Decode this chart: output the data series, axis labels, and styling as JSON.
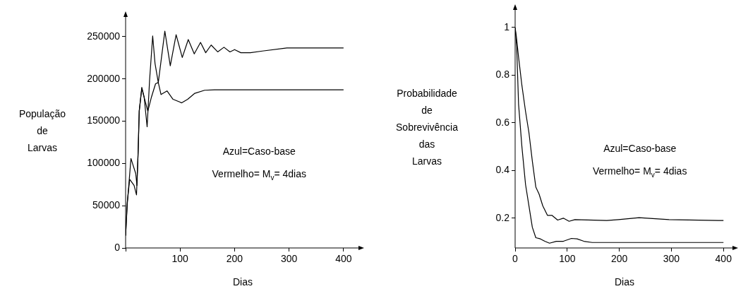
{
  "chart_data": [
    {
      "type": "line",
      "xlabel": "Dias",
      "ylabel": "População\nde\nLarvas",
      "xlim": [
        0,
        430
      ],
      "ylim": [
        0,
        275000
      ],
      "xticks": [
        {
          "value": 0,
          "label": null
        },
        100,
        200,
        300,
        400
      ],
      "yticks": [
        0,
        50000,
        100000,
        150000,
        200000,
        250000
      ],
      "annotations": [
        "Azul=Caso-base",
        "Vermelho= M$_{v}$= 4dias"
      ],
      "series": [
        {
          "color": "#000000",
          "x": [
            0,
            3,
            9.8,
            18.6,
            20.8,
            23,
            25,
            29.7,
            34,
            39.5,
            44,
            49.7,
            54,
            60,
            72,
            82,
            92.7,
            104,
            115,
            126,
            137.5,
            147,
            157,
            169,
            180.5,
            191.5,
            200,
            211.5,
            229,
            251,
            296,
            400
          ],
          "values": [
            14700,
            51500,
            105800,
            88000,
            74000,
            113700,
            161800,
            190000,
            178700,
            143400,
            198500,
            250800,
            218300,
            195700,
            256500,
            215500,
            252300,
            225400,
            246600,
            229600,
            243200,
            231000,
            240100,
            232000,
            237500,
            232000,
            234700,
            231000,
            231000,
            233000,
            236700,
            236700
          ]
        },
        {
          "color": "#000000",
          "x": [
            0,
            3,
            7.5,
            15.5,
            20,
            23,
            25,
            29.7,
            35,
            40.8,
            47.5,
            55,
            60,
            65,
            76,
            87,
            103,
            114,
            127,
            145,
            163,
            400
          ],
          "values": [
            14700,
            54000,
            81200,
            74100,
            62800,
            113700,
            161800,
            188600,
            175900,
            161800,
            178700,
            194300,
            195700,
            181500,
            185800,
            175900,
            171700,
            175900,
            183000,
            186600,
            187200,
            187200
          ]
        }
      ]
    },
    {
      "type": "line",
      "xlabel": "Dias",
      "ylabel": "Probabilidade\nde\nSobrevivência\ndas\nLarvas",
      "xlim": [
        0,
        420
      ],
      "ylim": [
        0.075,
        1.08
      ],
      "xticks": [
        0,
        100,
        200,
        300,
        400
      ],
      "yticks": [
        0.2,
        0.4,
        0.6,
        0.8,
        1
      ],
      "annotations": [
        "Azul=Caso-base",
        "Vermelho= M$_{v}$= 4dias"
      ],
      "series": [
        {
          "color": "#000000",
          "x": [
            0,
            2.2,
            6.6,
            13,
            20,
            26.5,
            33,
            39.7,
            46,
            53,
            62,
            70.6,
            81.6,
            92.6,
            103.6,
            114.7,
            176,
            198.5,
            238,
            295.5,
            400
          ],
          "values": [
            1.0,
            0.965,
            0.876,
            0.757,
            0.648,
            0.559,
            0.44,
            0.331,
            0.301,
            0.252,
            0.212,
            0.212,
            0.192,
            0.2,
            0.187,
            0.194,
            0.19,
            0.194,
            0.202,
            0.194,
            0.19
          ]
        },
        {
          "color": "#000000",
          "x": [
            0,
            3,
            6.6,
            13,
            20,
            26.5,
            33,
            39.7,
            48.5,
            57,
            66,
            79,
            92.6,
            108,
            119,
            132,
            148,
            400
          ],
          "values": [
            1.0,
            0.916,
            0.678,
            0.5,
            0.341,
            0.252,
            0.162,
            0.118,
            0.113,
            0.103,
            0.095,
            0.103,
            0.103,
            0.115,
            0.113,
            0.103,
            0.098,
            0.098
          ]
        }
      ]
    }
  ]
}
